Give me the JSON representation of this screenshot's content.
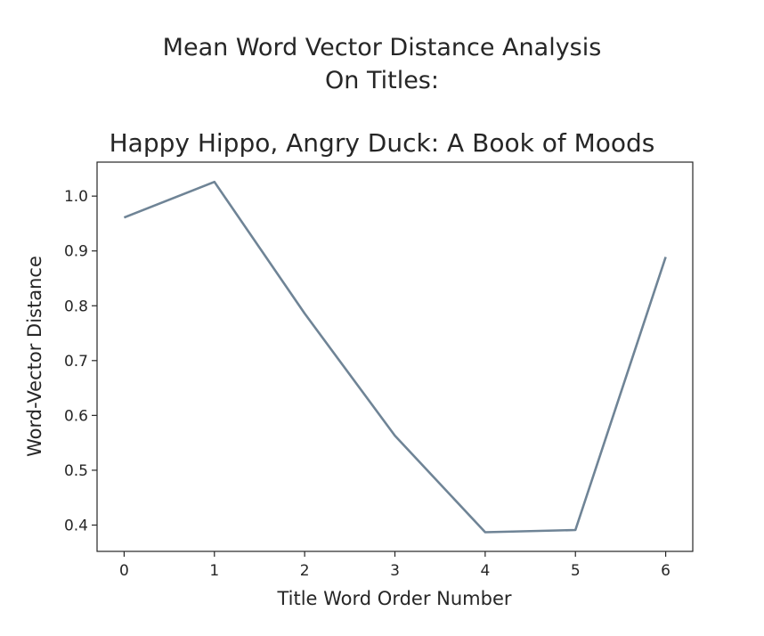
{
  "chart_data": {
    "type": "line",
    "title_lines": [
      "Mean Word Vector Distance Analysis",
      "On Titles:",
      "Happy Hippo, Angry Duck: A Book of Moods"
    ],
    "xlabel": "Title Word Order Number",
    "ylabel": "Word-Vector Distance",
    "x": [
      0,
      1,
      2,
      3,
      4,
      5,
      6
    ],
    "y": [
      0.961,
      1.026,
      0.786,
      0.563,
      0.387,
      0.391,
      0.889
    ],
    "xlim": [
      -0.3,
      6.3
    ],
    "ylim": [
      0.352,
      1.062
    ],
    "xticks": [
      "0",
      "1",
      "2",
      "3",
      "4",
      "5",
      "6"
    ],
    "xtick_values": [
      0,
      1,
      2,
      3,
      4,
      5,
      6
    ],
    "yticks": [
      "0.4",
      "0.5",
      "0.6",
      "0.7",
      "0.8",
      "0.9",
      "1.0"
    ],
    "ytick_values": [
      0.4,
      0.5,
      0.6,
      0.7,
      0.8,
      0.9,
      1.0
    ],
    "line_color": "#6f8496",
    "grid": false,
    "legend": "none"
  }
}
